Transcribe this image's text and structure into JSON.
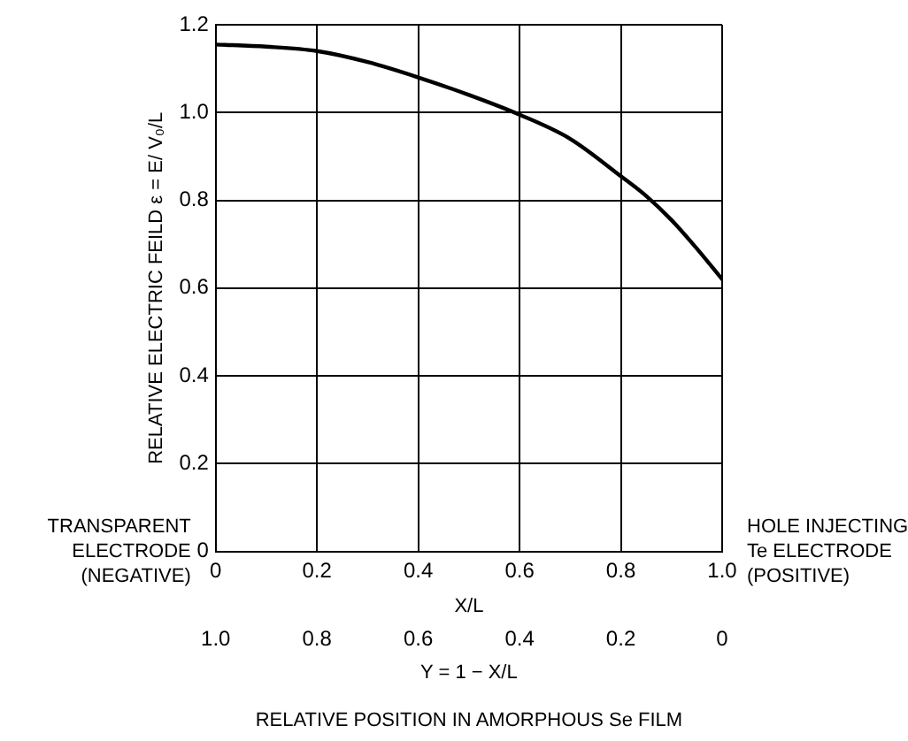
{
  "chart_data": {
    "type": "line",
    "ylabel": "RELATIVE ELECTRIC FEILD ε = E/ V₀/L",
    "xlabel": "X/L",
    "x2label": "Y = 1 − X/L",
    "x": [
      0,
      0.1,
      0.2,
      0.3,
      0.4,
      0.5,
      0.6,
      0.7,
      0.8,
      0.85,
      0.9,
      0.95,
      1.0
    ],
    "series": [
      {
        "color": "#000000",
        "values": [
          1.155,
          1.15,
          1.14,
          1.115,
          1.08,
          1.04,
          0.995,
          0.94,
          0.855,
          0.81,
          0.755,
          0.69,
          0.62
        ]
      }
    ],
    "xlim": [
      0,
      1
    ],
    "xticks": [
      0,
      0.2,
      0.4,
      0.6,
      0.8,
      {
        "value": 1,
        "label": "1.0"
      }
    ],
    "x2lim": [
      1,
      0
    ],
    "x2ticks": [
      {
        "value": 1,
        "label": "1.0"
      },
      0.8,
      0.6,
      0.4,
      0.2,
      0
    ],
    "ylim": [
      0,
      1.2
    ],
    "yticks": [
      0,
      0.2,
      0.4,
      0.6,
      0.8,
      {
        "value": 1,
        "label": "1.0"
      },
      1.2
    ],
    "grid": true,
    "marker": "none",
    "line_style": "solid",
    "annotations": [
      "RELATIVE POSITION IN AMORPHOUS Se FILM",
      "TRANSPARENT\nELECTRODE\n(NEGATIVE)",
      "HOLE INJECTING\nTe ELECTRODE\n(POSITIVE)"
    ]
  }
}
